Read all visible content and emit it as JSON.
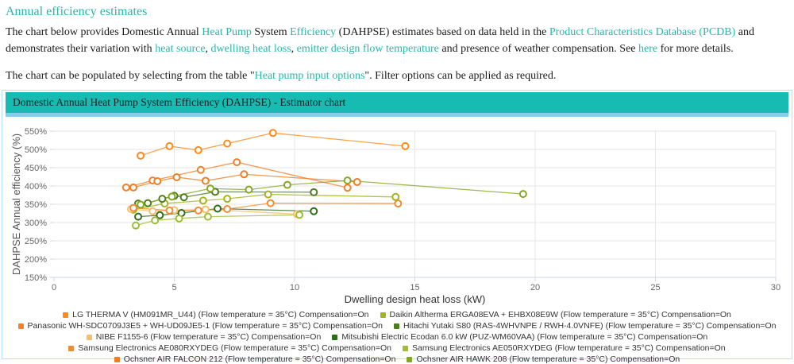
{
  "intro": {
    "heading": "Annual efficiency estimates",
    "para1_segments": [
      {
        "text": "The chart below provides Domestic Annual ",
        "link": false
      },
      {
        "text": "Heat Pump",
        "link": true
      },
      {
        "text": " System ",
        "link": false
      },
      {
        "text": "Efficiency",
        "link": true
      },
      {
        "text": " (DAHPSE) estimates based on data held in the ",
        "link": false
      },
      {
        "text": "Product Characteristics Database (PCDB)",
        "link": true
      },
      {
        "text": " and demonstrates their variation with ",
        "link": false
      },
      {
        "text": "heat source",
        "link": true
      },
      {
        "text": ", ",
        "link": false
      },
      {
        "text": "dwelling heat loss",
        "link": true
      },
      {
        "text": ", ",
        "link": false
      },
      {
        "text": "emitter design flow temperature",
        "link": true
      },
      {
        "text": " and presence of weather compensation. See ",
        "link": false
      },
      {
        "text": "here",
        "link": true
      },
      {
        "text": " for more details.",
        "link": false
      }
    ],
    "para2_segments": [
      {
        "text": "The chart can be populated by selecting from the table \"",
        "link": false
      },
      {
        "text": "Heat pump input options",
        "link": true
      },
      {
        "text": "\". Filter options can be applied as required.",
        "link": false
      }
    ]
  },
  "panel": {
    "title": "Domestic Annual Heat Pump System Efficiency (DAHPSE) - Estimator chart"
  },
  "colors": {
    "teal_accent": "#2cb5ab",
    "panel_header_bg": "#16bcb2",
    "panel_strip": "#87cdef",
    "panel_border": "#b5e1f5",
    "grid": "#e6e6e6",
    "axis_line": "#ccd6eb",
    "tick_label": "#666666",
    "axis_title": "#333333"
  },
  "chart_data": {
    "type": "line",
    "title": "",
    "xlabel": "Dwelling design heat loss (kW)",
    "ylabel": "DAHPSE Annual efficiency (%)",
    "xlim": [
      0,
      30
    ],
    "ylim": [
      150,
      550
    ],
    "x_ticks": [
      0,
      5,
      10,
      15,
      20,
      25,
      30
    ],
    "y_ticks": [
      150,
      200,
      250,
      300,
      350,
      400,
      450,
      500,
      550
    ],
    "y_tick_suffix": "%",
    "grid": true,
    "legend_position": "bottom",
    "marker": "open-circle",
    "series": [
      {
        "name": "LG THERMA V (HM091MR_U44) (Flow temperature = 35°C) Compensation=On",
        "color": "#ff8a1e",
        "points": [
          [
            3.6,
            483
          ],
          [
            4.8,
            509
          ],
          [
            6.0,
            498
          ],
          [
            7.2,
            516
          ],
          [
            9.1,
            545
          ],
          [
            14.6,
            509
          ]
        ]
      },
      {
        "name": "Daikin Altherma ERGA08EVA + EHBX08E9W (Flow temperature = 35°C) Compensation=On",
        "color": "#a4b31f",
        "points": [
          [
            3.3,
            335
          ],
          [
            4.6,
            352
          ],
          [
            6.2,
            360
          ],
          [
            7.2,
            365
          ],
          [
            8.9,
            377
          ],
          [
            14.2,
            370
          ]
        ]
      },
      {
        "name": "Panasonic WH-SDC0709J3E5 + WH-UD09JE5-1 (Flow temperature = 35°C) Compensation=On",
        "color": "#f5802b",
        "points": [
          [
            3.0,
            396
          ],
          [
            4.1,
            415
          ],
          [
            6.1,
            444
          ],
          [
            7.6,
            465
          ],
          [
            12.2,
            395
          ]
        ]
      },
      {
        "name": "Hitachi Yutaki S80 (RAS-4WHVNPE / RWH-4.0VNFE) (Flow temperature = 35°C) Compensation=On",
        "color": "#4e7d20",
        "points": [
          [
            3.5,
            352
          ],
          [
            3.9,
            353
          ],
          [
            4.5,
            365
          ],
          [
            5.0,
            373
          ],
          [
            5.4,
            369
          ],
          [
            6.7,
            384
          ],
          [
            10.8,
            383
          ]
        ]
      },
      {
        "name": "NIBE F1155-6 (Flow temperature = 35°C) Compensation=On",
        "color": "#fbbd68",
        "points": [
          [
            3.2,
            337
          ],
          [
            4.1,
            331
          ],
          [
            5.0,
            334
          ],
          [
            6.3,
            336
          ],
          [
            10.1,
            323
          ]
        ]
      },
      {
        "name": "Mitsubishi Electric Ecodan 6.0 kW (PUZ-WM60VAA) (Flow temperature = 35°C) Compensation=On",
        "color": "#2f6d1d",
        "points": [
          [
            3.5,
            316
          ],
          [
            4.4,
            320
          ],
          [
            5.3,
            326
          ],
          [
            6.8,
            338
          ],
          [
            10.8,
            331
          ]
        ]
      },
      {
        "name": "Samsung Electronics AE080RXYDEG (Flow temperature = 35°C) Compensation=On",
        "color": "#f08c32",
        "points": [
          [
            3.3,
            340
          ],
          [
            4.8,
            333
          ],
          [
            6.0,
            333
          ],
          [
            7.2,
            337
          ],
          [
            9.0,
            353
          ],
          [
            14.3,
            352
          ]
        ]
      },
      {
        "name": "Samsung Electronics AE050RXYDEG (Flow temperature = 35°C) Compensation=On",
        "color": "#9dbe34",
        "points": [
          [
            3.4,
            292
          ],
          [
            4.2,
            306
          ],
          [
            5.2,
            311
          ],
          [
            6.4,
            316
          ],
          [
            10.2,
            321
          ]
        ]
      },
      {
        "name": "Ochsner AIR FALCON 212 (Flow temperature = 35°C) Compensation=On",
        "color": "#ee7f24",
        "points": [
          [
            3.3,
            396
          ],
          [
            4.3,
            413
          ],
          [
            5.1,
            424
          ],
          [
            6.3,
            414
          ],
          [
            7.9,
            432
          ],
          [
            12.6,
            411
          ]
        ]
      },
      {
        "name": "Ochsner AIR HAWK 208 (Flow temperature = 35°C) Compensation=On",
        "color": "#84a622",
        "points": [
          [
            3.6,
            349
          ],
          [
            4.9,
            371
          ],
          [
            6.5,
            393
          ],
          [
            8.1,
            390
          ],
          [
            9.7,
            403
          ],
          [
            12.2,
            415
          ],
          [
            19.5,
            378
          ]
        ]
      }
    ]
  }
}
